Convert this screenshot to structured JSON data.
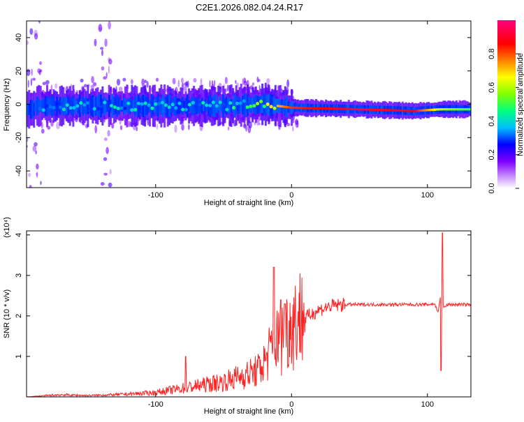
{
  "title": "C2E1.2026.082.04.24.R17",
  "chart_data": [
    {
      "type": "heatmap",
      "title": "C2E1.2026.082.04.24.R17",
      "xlabel": "Height of straight line (km)",
      "ylabel": "Frequency (Hz)",
      "xlim": [
        -195,
        132
      ],
      "ylim": [
        -50,
        50
      ],
      "x_ticks": [
        -100,
        0,
        100
      ],
      "y_ticks": [
        -40,
        -20,
        0,
        20,
        40
      ],
      "colorbar": {
        "label": "Normalized spectral amplitude",
        "range": [
          0,
          1
        ],
        "ticks": [
          0.0,
          0.2,
          0.4,
          0.6,
          0.8
        ],
        "colors": [
          "#ffffff",
          "#8000ff",
          "#0000ff",
          "#00bfff",
          "#00ff80",
          "#80ff00",
          "#ffff00",
          "#ff8000",
          "#ff0000",
          "#ff0080"
        ]
      },
      "ridge": {
        "description_values": [
          {
            "x": -190,
            "f": -1,
            "amp": 0.35
          },
          {
            "x": -100,
            "f": -1,
            "amp": 0.4
          },
          {
            "x": -50,
            "f": -1,
            "amp": 0.4
          },
          {
            "x": -20,
            "f": 0,
            "amp": 0.6
          },
          {
            "x": 0,
            "f": -2,
            "amp": 0.85
          },
          {
            "x": 50,
            "f": -3,
            "amp": 0.95
          },
          {
            "x": 90,
            "f": -4,
            "amp": 0.9
          },
          {
            "x": 110,
            "f": -3,
            "amp": 0.6
          },
          {
            "x": 130,
            "f": -3,
            "amp": 0.5
          }
        ]
      }
    },
    {
      "type": "line",
      "xlabel": "Height of straight line (km)",
      "ylabel": "SNR (10 * v/v)",
      "y_multiplier": "(x10⁴)",
      "xlim": [
        -195,
        132
      ],
      "ylim": [
        0,
        4.1
      ],
      "x_ticks": [
        -100,
        0,
        100
      ],
      "y_ticks": [
        1,
        2,
        3,
        4
      ],
      "color": "#ff2222",
      "series": [
        {
          "x": [
            -195,
            -170,
            -150,
            -130,
            -110,
            -100,
            -90,
            -80,
            -70,
            -60,
            -50,
            -40,
            -30,
            -25,
            -20,
            -15,
            -10,
            -5,
            0,
            10,
            20,
            30,
            40,
            50,
            60,
            70,
            80,
            90,
            100,
            105,
            108,
            110,
            112,
            115,
            120,
            132
          ],
          "y": [
            0.0,
            0.05,
            0.03,
            0.05,
            0.08,
            0.1,
            0.15,
            0.2,
            0.25,
            0.3,
            0.35,
            0.45,
            0.55,
            0.6,
            0.8,
            1.1,
            1.3,
            1.5,
            1.7,
            1.95,
            2.15,
            2.25,
            2.28,
            2.28,
            2.28,
            2.28,
            2.28,
            2.28,
            2.28,
            2.3,
            2.1,
            2.6,
            2.2,
            2.28,
            2.28,
            2.28
          ]
        }
      ],
      "spikes": [
        {
          "x": -78,
          "y": 1.0
        },
        {
          "x": -13,
          "y": 3.2
        },
        {
          "x": -8,
          "y": 2.4
        },
        {
          "x": -5,
          "y": 2.3
        },
        {
          "x": 110,
          "y": 0.65
        },
        {
          "x": 111,
          "y": 4.05
        }
      ]
    }
  ]
}
